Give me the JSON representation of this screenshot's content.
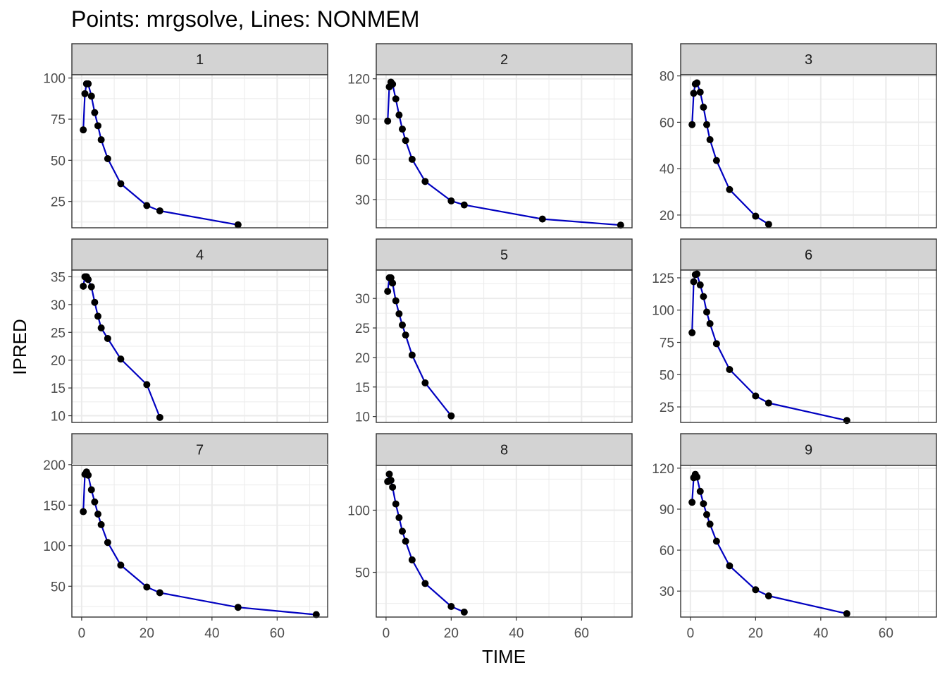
{
  "chart_data": {
    "type": "line",
    "title": "Points: mrgsolve, Lines: NONMEM",
    "xlabel": "TIME",
    "ylabel": "IPRED",
    "xlim": [
      -3,
      75.5
    ],
    "x_ticks": [
      0,
      20,
      40,
      60
    ],
    "grid": true,
    "theme": "bw",
    "colors": {
      "line": "#0000c0",
      "point": "#000000",
      "strip": "#d3d3d3",
      "grid": "#ebebeb",
      "border": "#333333"
    },
    "panels": [
      {
        "label": "1",
        "ylim": [
          9,
          102
        ],
        "y_ticks": [
          25,
          50,
          75,
          100
        ],
        "points": [
          [
            0.5,
            68.5
          ],
          [
            1,
            90.5
          ],
          [
            1.5,
            96.5
          ],
          [
            2,
            96.5
          ],
          [
            3,
            89
          ],
          [
            4,
            79
          ],
          [
            5,
            71
          ],
          [
            6,
            62.5
          ],
          [
            8,
            51
          ],
          [
            12,
            35.8
          ],
          [
            20,
            22.5
          ],
          [
            24,
            19.3
          ],
          [
            48,
            10.8
          ]
        ]
      },
      {
        "label": "2",
        "ylim": [
          9,
          123
        ],
        "y_ticks": [
          30,
          60,
          90,
          120
        ],
        "points": [
          [
            0.5,
            88.5
          ],
          [
            1,
            114
          ],
          [
            1.5,
            117.5
          ],
          [
            2,
            116
          ],
          [
            3,
            105
          ],
          [
            4,
            93
          ],
          [
            5,
            82.5
          ],
          [
            6,
            74
          ],
          [
            8,
            60
          ],
          [
            12,
            43.5
          ],
          [
            20,
            29
          ],
          [
            24,
            26
          ],
          [
            48,
            15.5
          ],
          [
            72,
            11
          ]
        ]
      },
      {
        "label": "3",
        "ylim": [
          14.5,
          80.5
        ],
        "y_ticks": [
          20,
          40,
          60,
          80
        ],
        "points": [
          [
            0.5,
            59
          ],
          [
            1,
            72.5
          ],
          [
            1.5,
            76.5
          ],
          [
            2,
            77
          ],
          [
            3,
            73
          ],
          [
            4,
            66.5
          ],
          [
            5,
            59
          ],
          [
            6,
            52.5
          ],
          [
            8,
            43.5
          ],
          [
            12,
            31
          ],
          [
            20,
            19.5
          ],
          [
            24,
            16
          ]
        ]
      },
      {
        "label": "4",
        "ylim": [
          8.8,
          36.2
        ],
        "y_ticks": [
          10,
          15,
          20,
          25,
          30,
          35
        ],
        "points": [
          [
            0.5,
            33.3
          ],
          [
            1,
            35
          ],
          [
            1.5,
            35
          ],
          [
            2,
            34.5
          ],
          [
            3,
            33.2
          ],
          [
            4,
            30.4
          ],
          [
            5,
            27.9
          ],
          [
            6,
            25.8
          ],
          [
            8,
            23.9
          ],
          [
            12,
            20.2
          ],
          [
            20,
            15.6
          ],
          [
            24,
            9.7
          ]
        ],
        "line_points": [
          [
            0.5,
            33.3
          ],
          [
            1,
            35
          ],
          [
            1.5,
            35
          ],
          [
            2,
            34.5
          ],
          [
            3,
            33.2
          ],
          [
            4,
            30.4
          ],
          [
            5,
            27.9
          ],
          [
            6,
            25.8
          ],
          [
            8,
            23.9
          ],
          [
            12,
            20.2
          ],
          [
            20,
            15.6
          ],
          [
            24,
            9.7
          ]
        ]
      },
      {
        "label": "5",
        "ylim": [
          9,
          34.8
        ],
        "y_ticks": [
          10,
          15,
          20,
          25,
          30
        ],
        "points": [
          [
            0.5,
            31.2
          ],
          [
            1,
            33.5
          ],
          [
            1.5,
            33.5
          ],
          [
            2,
            32.6
          ],
          [
            3,
            29.6
          ],
          [
            4,
            27.4
          ],
          [
            5,
            25.5
          ],
          [
            6,
            23.8
          ],
          [
            8,
            20.4
          ],
          [
            12,
            15.7
          ],
          [
            20,
            10.1
          ]
        ]
      },
      {
        "label": "6",
        "ylim": [
          13,
          131
        ],
        "y_ticks": [
          25,
          50,
          75,
          100,
          125
        ],
        "points": [
          [
            0.5,
            82.5
          ],
          [
            1,
            122
          ],
          [
            1.5,
            127.5
          ],
          [
            2,
            128
          ],
          [
            3,
            119.5
          ],
          [
            4,
            110.5
          ],
          [
            5,
            98.5
          ],
          [
            6,
            89.5
          ],
          [
            8,
            74
          ],
          [
            12,
            54
          ],
          [
            20,
            33.5
          ],
          [
            24,
            28
          ],
          [
            48,
            14.5
          ]
        ]
      },
      {
        "label": "7",
        "ylim": [
          12,
          199
        ],
        "y_ticks": [
          50,
          100,
          150,
          200
        ],
        "points": [
          [
            0.5,
            142
          ],
          [
            1,
            188
          ],
          [
            1.5,
            191
          ],
          [
            2,
            187
          ],
          [
            3,
            169
          ],
          [
            4,
            154
          ],
          [
            5,
            139
          ],
          [
            6,
            126
          ],
          [
            8,
            104
          ],
          [
            12,
            76
          ],
          [
            20,
            49
          ],
          [
            24,
            42
          ],
          [
            48,
            24
          ],
          [
            72,
            15
          ]
        ]
      },
      {
        "label": "8",
        "ylim": [
          14,
          136
        ],
        "y_ticks": [
          50,
          100
        ],
        "points": [
          [
            0.5,
            123
          ],
          [
            1,
            129
          ],
          [
            1.5,
            124
          ],
          [
            2,
            118.5
          ],
          [
            3,
            105
          ],
          [
            4,
            94
          ],
          [
            5,
            83
          ],
          [
            6,
            75
          ],
          [
            8,
            60
          ],
          [
            12,
            41
          ],
          [
            20,
            22.5
          ],
          [
            24,
            18
          ]
        ]
      },
      {
        "label": "9",
        "ylim": [
          11,
          122
        ],
        "y_ticks": [
          30,
          60,
          90,
          120
        ],
        "points": [
          [
            0.5,
            95
          ],
          [
            1,
            113
          ],
          [
            1.5,
            115.5
          ],
          [
            2,
            113.5
          ],
          [
            3,
            103
          ],
          [
            4,
            94
          ],
          [
            5,
            86
          ],
          [
            6,
            79
          ],
          [
            8,
            66.5
          ],
          [
            12,
            48.5
          ],
          [
            20,
            31
          ],
          [
            24,
            26.5
          ],
          [
            48,
            13.5
          ]
        ]
      }
    ]
  }
}
